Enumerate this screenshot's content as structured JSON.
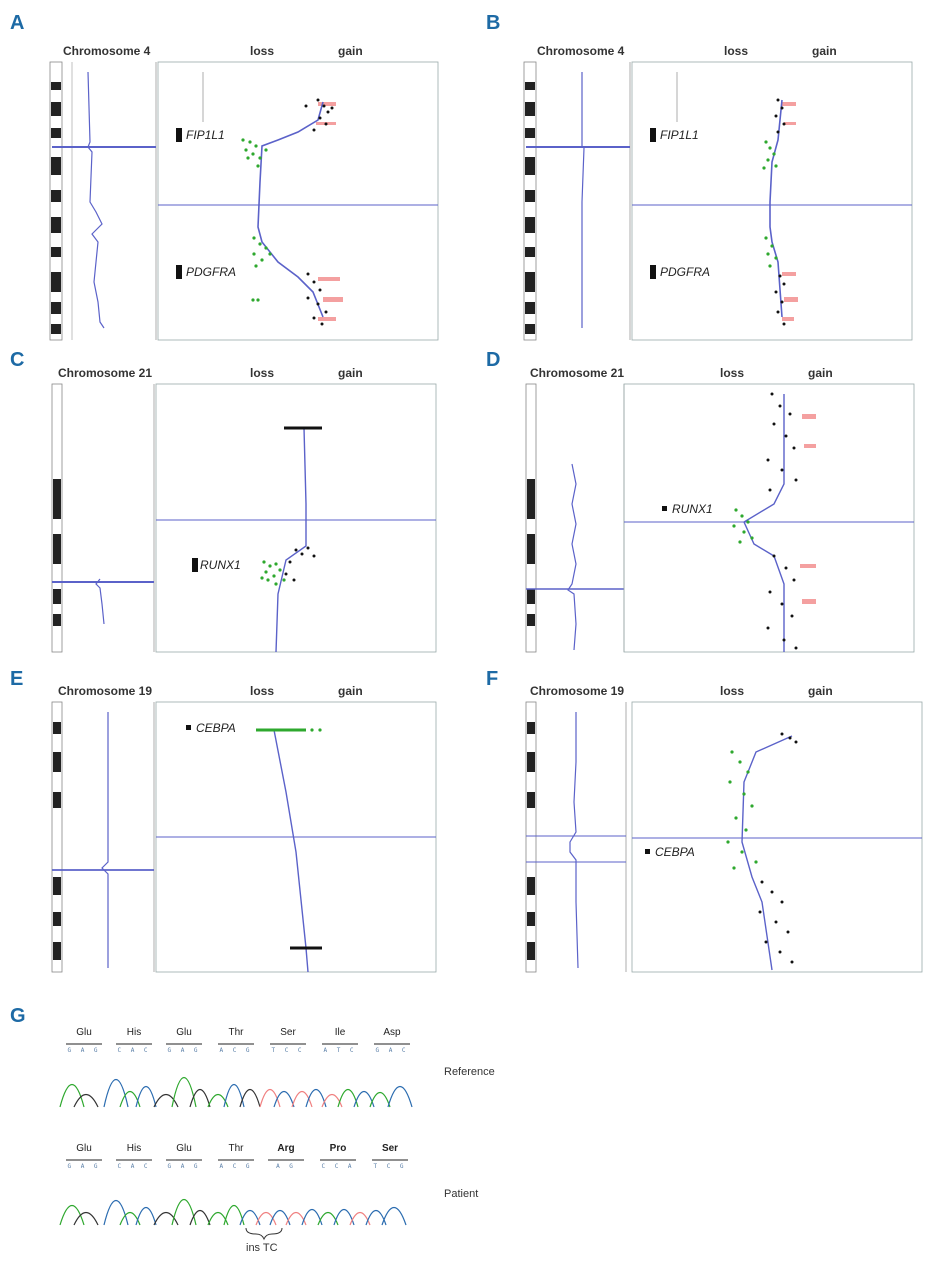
{
  "labels": {
    "loss": "loss",
    "gain": "gain"
  },
  "panels": [
    {
      "letter": "A",
      "chromosome": "Chromosome 4",
      "genes": [
        "FIP1L1",
        "PDGFRA"
      ]
    },
    {
      "letter": "B",
      "chromosome": "Chromosome 4",
      "genes": [
        "FIP1L1",
        "PDGFRA"
      ]
    },
    {
      "letter": "C",
      "chromosome": "Chromosome 21",
      "genes": [
        "RUNX1"
      ]
    },
    {
      "letter": "D",
      "chromosome": "Chromosome 21",
      "genes": [
        "RUNX1"
      ]
    },
    {
      "letter": "E",
      "chromosome": "Chromosome 19",
      "genes": [
        "CEBPA"
      ]
    },
    {
      "letter": "F",
      "chromosome": "Chromosome 19",
      "genes": [
        "CEBPA"
      ]
    }
  ],
  "panel_g": {
    "letter": "G",
    "reference": {
      "label": "Reference",
      "amino_acids": [
        "Glu",
        "His",
        "Glu",
        "Thr",
        "Ser",
        "Ile",
        "Asp"
      ],
      "codons": [
        "G A G",
        "C A C",
        "G A G",
        "A C G",
        "T C C",
        "A T C",
        "G A C"
      ]
    },
    "patient": {
      "label": "Patient",
      "amino_acids": [
        "Glu",
        "His",
        "Glu",
        "Thr",
        "Arg",
        "Pro",
        "Ser"
      ],
      "codons": [
        "G A G",
        "C A C",
        "G A G",
        "A C G",
        "A G",
        "C C A",
        "T C G"
      ]
    },
    "insertion_label": "ins TC"
  },
  "colors": {
    "trend_line": "#5b62c9",
    "loss_points": "#2ea82e",
    "gain_points": "#111111",
    "gain_shading": "#f08080",
    "letters": "#1d6aa5"
  }
}
